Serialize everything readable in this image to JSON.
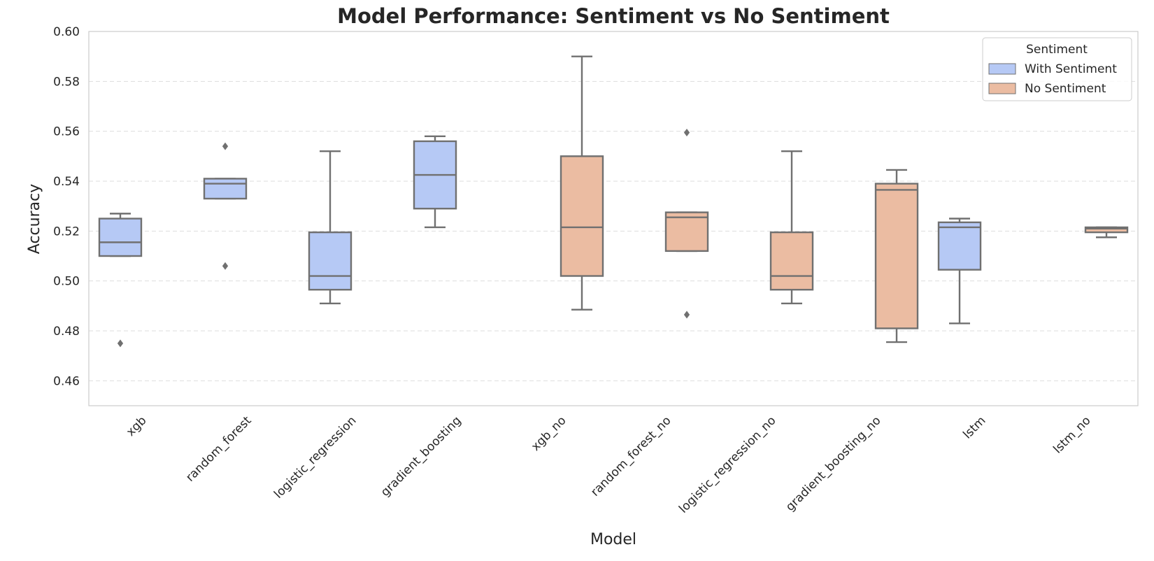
{
  "chart_data": {
    "type": "box",
    "title": "Model Performance: Sentiment vs No Sentiment",
    "xlabel": "Model",
    "ylabel": "Accuracy",
    "ylim": [
      0.45,
      0.6
    ],
    "yticks": [
      "0.46",
      "0.48",
      "0.50",
      "0.52",
      "0.54",
      "0.56",
      "0.58",
      "0.60"
    ],
    "grid": "horizontal-dashed",
    "legend": {
      "title": "Sentiment",
      "position": "top-right",
      "entries": [
        {
          "label": "With Sentiment",
          "color": "#b6c9f5"
        },
        {
          "label": "No Sentiment",
          "color": "#ebbca2"
        }
      ]
    },
    "colors": {
      "with": "#b6c9f5",
      "no": "#ebbca2",
      "line": "#707070",
      "grid": "#dddddd",
      "frame": "#cccccc"
    },
    "categories": [
      "xgb",
      "random_forest",
      "logistic_regression",
      "gradient_boosting",
      "xgb_no",
      "random_forest_no",
      "logistic_regression_no",
      "gradient_boosting_no",
      "lstm",
      "lstm_no"
    ],
    "boxes": [
      {
        "model": "xgb",
        "group": "With Sentiment",
        "whisker_low": 0.51,
        "q1": 0.51,
        "median": 0.5155,
        "q3": 0.525,
        "whisker_high": 0.527,
        "outliers": [
          0.475
        ]
      },
      {
        "model": "random_forest",
        "group": "With Sentiment",
        "whisker_low": 0.533,
        "q1": 0.533,
        "median": 0.539,
        "q3": 0.541,
        "whisker_high": 0.541,
        "outliers": [
          0.554,
          0.506
        ]
      },
      {
        "model": "logistic_regression",
        "group": "With Sentiment",
        "whisker_low": 0.491,
        "q1": 0.4965,
        "median": 0.502,
        "q3": 0.5195,
        "whisker_high": 0.552,
        "outliers": []
      },
      {
        "model": "gradient_boosting",
        "group": "With Sentiment",
        "whisker_low": 0.5215,
        "q1": 0.529,
        "median": 0.5425,
        "q3": 0.556,
        "whisker_high": 0.558,
        "outliers": []
      },
      {
        "model": "xgb_no",
        "group": "No Sentiment",
        "whisker_low": 0.4885,
        "q1": 0.502,
        "median": 0.5215,
        "q3": 0.55,
        "whisker_high": 0.59,
        "outliers": []
      },
      {
        "model": "random_forest_no",
        "group": "No Sentiment",
        "whisker_low": 0.512,
        "q1": 0.512,
        "median": 0.5255,
        "q3": 0.5275,
        "whisker_high": 0.5275,
        "outliers": [
          0.5595,
          0.4865
        ]
      },
      {
        "model": "logistic_regression_no",
        "group": "No Sentiment",
        "whisker_low": 0.491,
        "q1": 0.4965,
        "median": 0.502,
        "q3": 0.5195,
        "whisker_high": 0.552,
        "outliers": []
      },
      {
        "model": "gradient_boosting_no",
        "group": "No Sentiment",
        "whisker_low": 0.4755,
        "q1": 0.481,
        "median": 0.5365,
        "q3": 0.539,
        "whisker_high": 0.5445,
        "outliers": []
      },
      {
        "model": "lstm",
        "group": "With Sentiment",
        "whisker_low": 0.483,
        "q1": 0.5045,
        "median": 0.5215,
        "q3": 0.5235,
        "whisker_high": 0.525,
        "outliers": []
      },
      {
        "model": "lstm_no",
        "group": "No Sentiment",
        "whisker_low": 0.5175,
        "q1": 0.5195,
        "median": 0.521,
        "q3": 0.5215,
        "whisker_high": 0.5215,
        "outliers": []
      }
    ]
  }
}
